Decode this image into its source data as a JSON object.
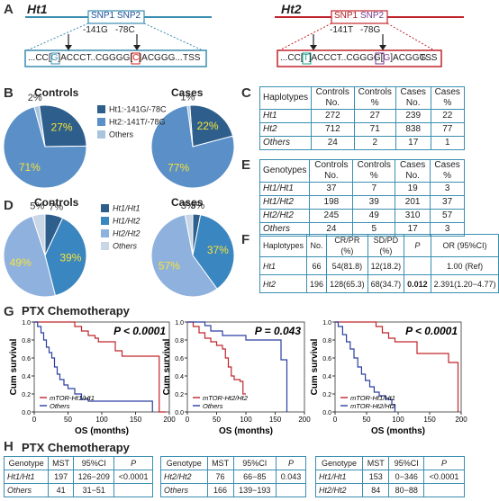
{
  "panels": {
    "A": "A",
    "B": "B",
    "C": "C",
    "D": "D",
    "E": "E",
    "F": "F",
    "G": "G",
    "H": "H"
  },
  "panelA": {
    "ht1": {
      "title": "Ht1",
      "snp1": "SNP1",
      "snp2": "SNP2",
      "pos1": "-141G",
      "pos2": "-78C",
      "seq_pre": "...CC[",
      "seq_a": "G",
      "seq_mid": "]ACCCT..CGGGG[",
      "seq_b": "C",
      "seq_post": "]ACGGG...",
      "tss": "TSS",
      "color": "#3a8eb0",
      "highlight": "#d42020"
    },
    "ht2": {
      "title": "Ht2",
      "snp1": "SNP1",
      "snp2": "SNP2",
      "pos1": "-141T",
      "pos2": "-78G",
      "seq_pre": "...CC[",
      "seq_a": "T",
      "seq_mid": "]ACCCT..CGGGG[",
      "seq_b": "G",
      "seq_post": "]ACGGG...",
      "tss": "TSS",
      "color": "#c0242b",
      "highlightA": "#1aa090",
      "highlightB": "#7a3a8a"
    }
  },
  "panelB": {
    "controls_title": "Controls",
    "cases_title": "Cases",
    "legend": [
      {
        "label": "Ht1:-141G/-78C",
        "color": "#2e5f8c"
      },
      {
        "label": "Ht2:-141T/-78G",
        "color": "#5a8fc8"
      },
      {
        "label": "Others",
        "color": "#a9c4dd"
      }
    ],
    "controls": [
      {
        "name": "Ht1",
        "value": 27,
        "label": "27%"
      },
      {
        "name": "Ht2",
        "value": 71,
        "label": "71%"
      },
      {
        "name": "Others",
        "value": 2,
        "label": "2%"
      }
    ],
    "cases": [
      {
        "name": "Ht1",
        "value": 22,
        "label": "22%"
      },
      {
        "name": "Ht2",
        "value": 77,
        "label": "77%"
      },
      {
        "name": "Others",
        "value": 1,
        "label": "1%"
      }
    ]
  },
  "panelC": {
    "headers": [
      "Haplotypes",
      "Controls No.",
      "Controls %",
      "Cases No.",
      "Cases %"
    ],
    "rows": [
      [
        "Ht1",
        "272",
        "27",
        "239",
        "22"
      ],
      [
        "Ht2",
        "712",
        "71",
        "838",
        "77"
      ],
      [
        "Others",
        "24",
        "2",
        "17",
        "1"
      ]
    ]
  },
  "panelD": {
    "controls_title": "Controls",
    "cases_title": "Cases",
    "legend": [
      {
        "label": "Ht1/Ht1",
        "color": "#2e5f8c"
      },
      {
        "label": "Ht1/Ht2",
        "color": "#3a86c0"
      },
      {
        "label": "Ht2/Ht2",
        "color": "#8fb1de"
      },
      {
        "label": "Others",
        "color": "#c9d6e6"
      }
    ],
    "controls": [
      {
        "name": "Ht1/Ht1",
        "value": 7,
        "label": "7%"
      },
      {
        "name": "Ht1/Ht2",
        "value": 39,
        "label": "39%"
      },
      {
        "name": "Ht2/Ht2",
        "value": 49,
        "label": "49%"
      },
      {
        "name": "Others",
        "value": 5,
        "label": "5%"
      }
    ],
    "cases": [
      {
        "name": "Ht1/Ht1",
        "value": 3,
        "label": "3%"
      },
      {
        "name": "Ht1/Ht2",
        "value": 37,
        "label": "37%"
      },
      {
        "name": "Ht2/Ht2",
        "value": 57,
        "label": "57%"
      },
      {
        "name": "Others",
        "value": 3,
        "label": "3%"
      }
    ]
  },
  "panelE": {
    "headers": [
      "Genotypes",
      "Controls No.",
      "Controls %",
      "Cases No.",
      "Cases %"
    ],
    "rows": [
      [
        "Ht1/Ht1",
        "37",
        "7",
        "19",
        "3"
      ],
      [
        "Ht1/Ht2",
        "198",
        "39",
        "201",
        "37"
      ],
      [
        "Ht2/Ht2",
        "245",
        "49",
        "310",
        "57"
      ],
      [
        "Others",
        "24",
        "5",
        "17",
        "3"
      ]
    ]
  },
  "panelF": {
    "headers": [
      "Haplotypes",
      "No.",
      "CR/PR (%)",
      "SD/PD (%)",
      "P",
      "OR (95%CI)"
    ],
    "rows": [
      [
        "Ht1",
        "66",
        "54(81.8)",
        "12(18.2)",
        "",
        "1.00 (Ref)"
      ],
      [
        "Ht2",
        "196",
        "128(65.3)",
        "68(34.7)",
        "0.012",
        "2.391(1.20−4.77)"
      ]
    ]
  },
  "panelG": {
    "title": "PTX Chemotherapy",
    "ylabel": "Cum survival",
    "xlabel": "OS (months)",
    "plots": [
      {
        "pval": "P < 0.0001",
        "legend": [
          "mTOR-Ht1/Ht1",
          "Others"
        ],
        "xmax": 200,
        "xticks": [
          0,
          50,
          100,
          150,
          200
        ],
        "xtick_labels": [
          "0",
          "50",
          "100",
          "150",
          "200"
        ],
        "yticks": [
          0,
          0.2,
          0.4,
          0.6,
          0.8,
          1.0
        ],
        "ytick_labels": [
          "0.0",
          "0.2",
          "0.4",
          "0.6",
          "0.8",
          "1.0"
        ],
        "series": [
          {
            "name": "mTOR-Ht1/Ht1",
            "color": "#c0242b",
            "points": [
              [
                0,
                1.0
              ],
              [
                60,
                1.0
              ],
              [
                60,
                0.95
              ],
              [
                70,
                0.9
              ],
              [
                80,
                0.85
              ],
              [
                90,
                0.82
              ],
              [
                95,
                0.78
              ],
              [
                110,
                0.78
              ],
              [
                120,
                0.68
              ],
              [
                130,
                0.62
              ],
              [
                185,
                0.62
              ],
              [
                185,
                0.0
              ],
              [
                195,
                0.0
              ]
            ]
          },
          {
            "name": "Others",
            "color": "#2a3fa0",
            "points": [
              [
                0,
                1.0
              ],
              [
                5,
                0.95
              ],
              [
                10,
                0.88
              ],
              [
                14,
                0.8
              ],
              [
                18,
                0.72
              ],
              [
                22,
                0.66
              ],
              [
                26,
                0.6
              ],
              [
                30,
                0.5
              ],
              [
                34,
                0.42
              ],
              [
                38,
                0.36
              ],
              [
                44,
                0.3
              ],
              [
                50,
                0.26
              ],
              [
                60,
                0.2
              ],
              [
                70,
                0.14
              ],
              [
                80,
                0.12
              ],
              [
                175,
                0.12
              ],
              [
                175,
                0.0
              ]
            ]
          }
        ]
      },
      {
        "pval": "P = 0.043",
        "legend": [
          "mTOR-Ht2/Ht2",
          "Others"
        ],
        "xmax": 200,
        "xticks": [
          0,
          50,
          100,
          150,
          200
        ],
        "xtick_labels": [
          "0",
          "50",
          "100",
          "150",
          "200"
        ],
        "yticks": [
          0,
          0.2,
          0.4,
          0.6,
          0.8,
          1.0
        ],
        "ytick_labels": [
          "0.0",
          "0.2",
          "0.4",
          "0.6",
          "0.8",
          "1.0"
        ],
        "series": [
          {
            "name": "mTOR-Ht2/Ht2",
            "color": "#c0242b",
            "points": [
              [
                0,
                1.0
              ],
              [
                10,
                0.95
              ],
              [
                20,
                0.88
              ],
              [
                30,
                0.82
              ],
              [
                40,
                0.78
              ],
              [
                50,
                0.74
              ],
              [
                60,
                0.7
              ],
              [
                65,
                0.6
              ],
              [
                70,
                0.5
              ],
              [
                75,
                0.4
              ],
              [
                80,
                0.36
              ],
              [
                90,
                0.34
              ],
              [
                95,
                0.2
              ],
              [
                100,
                0.2
              ]
            ]
          },
          {
            "name": "Others",
            "color": "#2a3fa0",
            "points": [
              [
                0,
                1.0
              ],
              [
                20,
                1.0
              ],
              [
                30,
                0.96
              ],
              [
                40,
                0.9
              ],
              [
                60,
                0.85
              ],
              [
                80,
                0.85
              ],
              [
                100,
                0.8
              ],
              [
                140,
                0.8
              ],
              [
                160,
                0.58
              ],
              [
                170,
                0.58
              ],
              [
                170,
                0.0
              ]
            ]
          }
        ]
      },
      {
        "pval": "P < 0.0001",
        "legend": [
          "mTOR-Ht1/Ht1",
          "mTOR-Ht2/Ht2"
        ],
        "xmax": 200,
        "xticks": [
          0,
          50,
          100,
          150,
          200
        ],
        "xtick_labels": [
          "0",
          "50",
          "100",
          "150",
          "200"
        ],
        "yticks": [
          0,
          0.2,
          0.4,
          0.6,
          0.8,
          1.0
        ],
        "ytick_labels": [
          "0.0",
          "0.2",
          "0.4",
          "0.6",
          "0.8",
          "1.0"
        ],
        "series": [
          {
            "name": "mTOR-Ht1/Ht1",
            "color": "#c0242b",
            "points": [
              [
                0,
                1.0
              ],
              [
                60,
                1.0
              ],
              [
                65,
                0.95
              ],
              [
                75,
                0.88
              ],
              [
                85,
                0.82
              ],
              [
                95,
                0.78
              ],
              [
                120,
                0.78
              ],
              [
                130,
                0.65
              ],
              [
                175,
                0.65
              ],
              [
                180,
                0.55
              ],
              [
                195,
                0.55
              ],
              [
                195,
                0.0
              ]
            ]
          },
          {
            "name": "mTOR-Ht2/Ht2",
            "color": "#2a3fa0",
            "points": [
              [
                0,
                1.0
              ],
              [
                5,
                0.95
              ],
              [
                12,
                0.86
              ],
              [
                18,
                0.78
              ],
              [
                24,
                0.7
              ],
              [
                30,
                0.6
              ],
              [
                36,
                0.5
              ],
              [
                42,
                0.42
              ],
              [
                48,
                0.35
              ],
              [
                55,
                0.28
              ],
              [
                62,
                0.22
              ],
              [
                70,
                0.18
              ],
              [
                80,
                0.14
              ],
              [
                90,
                0.08
              ],
              [
                95,
                0.08
              ],
              [
                95,
                0.0
              ]
            ]
          }
        ]
      }
    ]
  },
  "panelH": {
    "title": "PTX Chemotherapy",
    "tables": [
      {
        "headers": [
          "Genotype",
          "MST",
          "95%CI",
          "P"
        ],
        "rows": [
          [
            "Ht1/Ht1",
            "197",
            "126−209",
            "<0.0001"
          ],
          [
            "Others",
            "41",
            "31−51",
            ""
          ]
        ]
      },
      {
        "headers": [
          "Genotype",
          "MST",
          "95%CI",
          "P"
        ],
        "rows": [
          [
            "Ht2/Ht2",
            "76",
            "66−85",
            "0.043"
          ],
          [
            "Others",
            "166",
            "139−193",
            ""
          ]
        ]
      },
      {
        "headers": [
          "Genotype",
          "MST",
          "95%CI",
          "P"
        ],
        "rows": [
          [
            "Ht1/Ht1",
            "153",
            "0−346",
            "<0.0001"
          ],
          [
            "Ht2/Ht2",
            "84",
            "80−88",
            ""
          ]
        ]
      }
    ]
  }
}
